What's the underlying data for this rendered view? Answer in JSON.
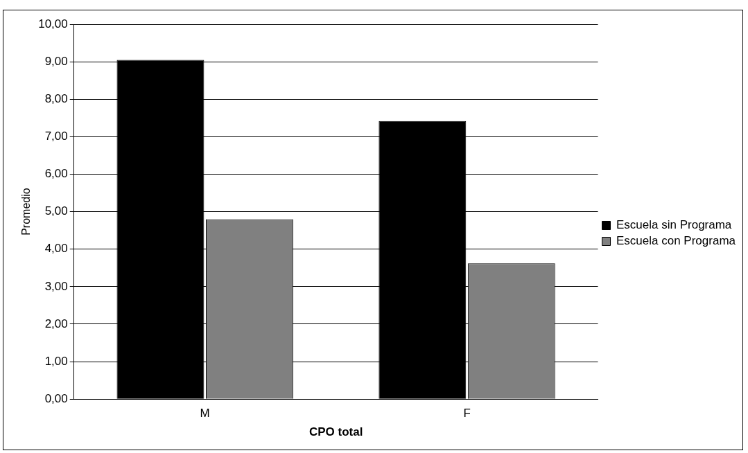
{
  "chart_data": {
    "type": "bar",
    "xlabel": "CPO total",
    "ylabel": "Promedio",
    "categories": [
      "M",
      "F"
    ],
    "series": [
      {
        "name": "Escuela sin Programa",
        "color": "#000000",
        "values": [
          9.05,
          7.42
        ]
      },
      {
        "name": "Escuela con Programa",
        "color": "#808080",
        "values": [
          4.8,
          3.62
        ]
      }
    ],
    "ylim": [
      0,
      10
    ],
    "yticks": [
      {
        "value": 0,
        "label": "0,00"
      },
      {
        "value": 1,
        "label": "1,00"
      },
      {
        "value": 2,
        "label": "2,00"
      },
      {
        "value": 3,
        "label": "3,00"
      },
      {
        "value": 4,
        "label": "4,00"
      },
      {
        "value": 5,
        "label": "5,00"
      },
      {
        "value": 6,
        "label": "6,00"
      },
      {
        "value": 7,
        "label": "7,00"
      },
      {
        "value": 8,
        "label": "8,00"
      },
      {
        "value": 9,
        "label": "9,00"
      },
      {
        "value": 10,
        "label": "10,00"
      }
    ],
    "grid": "y",
    "legend": "right"
  }
}
